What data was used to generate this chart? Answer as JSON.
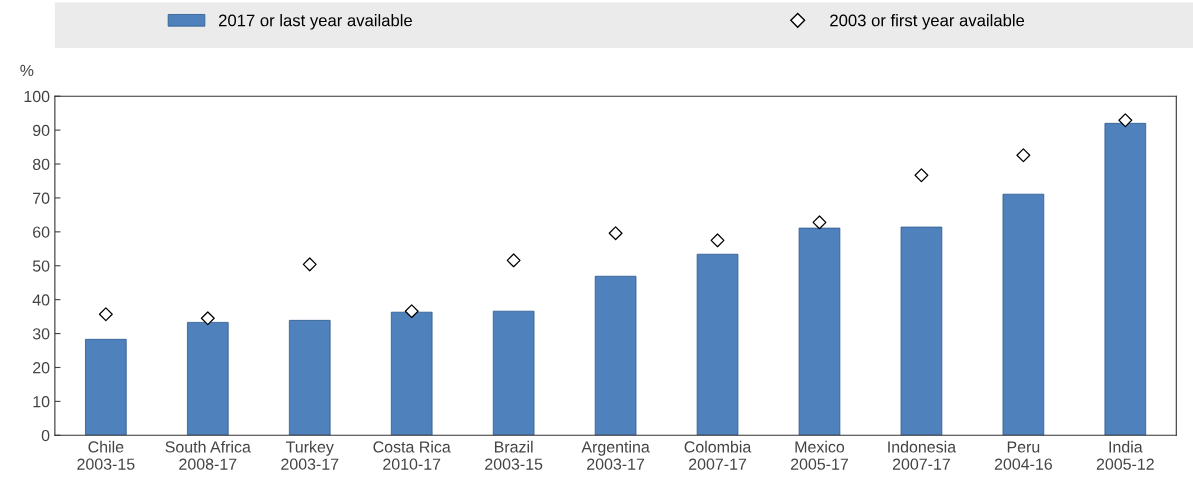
{
  "chart_data": {
    "type": "bar",
    "ylabel": "%",
    "categories": [
      "Chile\n2003-15",
      "South Africa\n2008-17",
      "Turkey\n2003-17",
      "Costa Rica\n2010-17",
      "Brazil\n2003-15",
      "Argentina\n2003-17",
      "Colombia\n2007-17",
      "Mexico\n2005-17",
      "Indonesia\n2007-17",
      "Peru\n2004-16",
      "India\n2005-12"
    ],
    "series": [
      {
        "name": "2017 or last year available",
        "color": "#4f81bd",
        "values": [
          28.3,
          33.3,
          33.9,
          36.3,
          36.6,
          46.9,
          53.4,
          61.1,
          61.4,
          71.1,
          92.0
        ]
      },
      {
        "name": "2003 or first year available",
        "type": "scatter",
        "color": "#000000",
        "marker": "diamond",
        "values": [
          35.7,
          34.5,
          50.4,
          36.6,
          51.6,
          59.6,
          57.5,
          62.8,
          76.7,
          82.6,
          92.9
        ]
      }
    ],
    "ylim": [
      0,
      100
    ],
    "yticks": [
      0,
      10,
      20,
      30,
      40,
      50,
      60,
      70,
      80,
      90,
      100
    ],
    "grid": false,
    "legend": "top"
  }
}
